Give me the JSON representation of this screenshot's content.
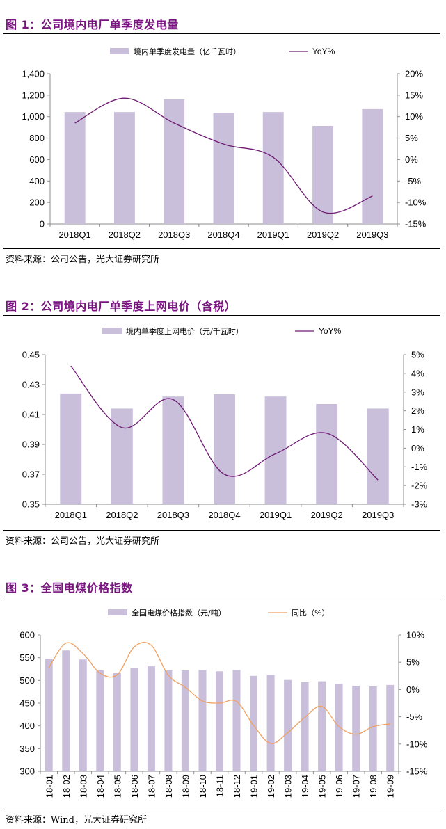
{
  "colors": {
    "title": "#7a1480",
    "bar": "#c9bfdb",
    "line1": "#6e1a72",
    "line3": "#f0a060",
    "axis": "#8c8c8c"
  },
  "figures": [
    {
      "title": "图 1：公司境内电厂单季度发电量",
      "source": "资料来源：公司公告，光大证券研究所"
    },
    {
      "title": "图 2：公司境内电厂单季度上网电价（含税）",
      "source": "资料来源：公司公告，光大证券研究所"
    },
    {
      "title": "图 3：全国电煤价格指数",
      "source": "资料来源：Wind，光大证券研究所"
    }
  ],
  "chart_data": [
    {
      "type": "bar",
      "title": "公司境内电厂单季度发电量",
      "categories": [
        "2018Q1",
        "2018Q2",
        "2018Q3",
        "2018Q4",
        "2019Q1",
        "2019Q2",
        "2019Q3"
      ],
      "series": [
        {
          "name": "境内单季度发电量（亿千瓦时）",
          "type": "bar",
          "axis": "left",
          "values": [
            1043,
            1043,
            1160,
            1037,
            1043,
            914,
            1070
          ]
        },
        {
          "name": "YoY%",
          "type": "line",
          "axis": "right",
          "values": [
            8.5,
            14.3,
            8.5,
            3.6,
            0.5,
            -12.2,
            -8.5
          ]
        }
      ],
      "yleft": {
        "lim": [
          0,
          1400
        ],
        "ticks": [
          0,
          200,
          400,
          600,
          800,
          1000,
          1200,
          1400
        ],
        "tick_labels": [
          "0",
          "200",
          "400",
          "600",
          "800",
          "1,000",
          "1,200",
          "1,400"
        ]
      },
      "yright": {
        "lim": [
          -15,
          20
        ],
        "ticks": [
          -15,
          -10,
          -5,
          0,
          5,
          10,
          15,
          20
        ],
        "tick_labels": [
          "-15%",
          "-10%",
          "-5%",
          "0%",
          "5%",
          "10%",
          "15%",
          "20%"
        ]
      },
      "legend": "top",
      "grid": false
    },
    {
      "type": "bar",
      "title": "公司境内电厂单季度上网电价（含税）",
      "categories": [
        "2018Q1",
        "2018Q2",
        "2018Q3",
        "2018Q4",
        "2019Q1",
        "2019Q2",
        "2019Q3"
      ],
      "series": [
        {
          "name": "境内单季度上网电价（元/千瓦时）",
          "type": "bar",
          "axis": "left",
          "values": [
            0.424,
            0.414,
            0.422,
            0.4235,
            0.422,
            0.417,
            0.414
          ]
        },
        {
          "name": "YoY%",
          "type": "line",
          "axis": "right",
          "values": [
            4.4,
            1.1,
            2.6,
            -1.4,
            -0.3,
            0.8,
            -1.7
          ]
        }
      ],
      "yleft": {
        "lim": [
          0.35,
          0.45
        ],
        "ticks": [
          0.35,
          0.37,
          0.39,
          0.41,
          0.43,
          0.45
        ],
        "tick_labels": [
          "0.35",
          "0.37",
          "0.39",
          "0.41",
          "0.43",
          "0.45"
        ]
      },
      "yright": {
        "lim": [
          -3,
          5
        ],
        "ticks": [
          -3,
          -2,
          -1,
          0,
          1,
          2,
          3,
          4,
          5
        ],
        "tick_labels": [
          "-3%",
          "-2%",
          "-1%",
          "0%",
          "1%",
          "2%",
          "3%",
          "4%",
          "5%"
        ]
      },
      "legend": "top",
      "grid": false
    },
    {
      "type": "bar",
      "title": "全国电煤价格指数",
      "categories": [
        "18-01",
        "18-02",
        "18-03",
        "18-04",
        "18-05",
        "18-06",
        "18-07",
        "18-08",
        "18-09",
        "18-10",
        "18-11",
        "18-12",
        "19-01",
        "19-02",
        "19-03",
        "19-04",
        "19-05",
        "19-06",
        "19-07",
        "19-08",
        "19-09"
      ],
      "series": [
        {
          "name": "全国电煤价格指数（元/吨）",
          "type": "bar",
          "axis": "left",
          "values": [
            548,
            566,
            546,
            522,
            516,
            528,
            531,
            522,
            522,
            523,
            520,
            523,
            510,
            512,
            501,
            496,
            498,
            492,
            488,
            487,
            490
          ]
        },
        {
          "name": "同比（%）",
          "type": "line",
          "axis": "right",
          "values": [
            4.0,
            8.5,
            6.6,
            3.0,
            2.7,
            7.8,
            8.1,
            2.6,
            0.4,
            -2.1,
            -2.5,
            -2.2,
            -6.6,
            -9.9,
            -7.9,
            -5.1,
            -3.1,
            -6.8,
            -8.2,
            -6.8,
            -6.3
          ]
        }
      ],
      "yleft": {
        "lim": [
          300,
          600
        ],
        "ticks": [
          300,
          350,
          400,
          450,
          500,
          550,
          600
        ],
        "tick_labels": [
          "300",
          "350",
          "400",
          "450",
          "500",
          "550",
          "600"
        ]
      },
      "yright": {
        "lim": [
          -15,
          10
        ],
        "ticks": [
          -15,
          -10,
          -5,
          0,
          5,
          10
        ],
        "tick_labels": [
          "-15%",
          "-10%",
          "-5%",
          "0%",
          "5%",
          "10%"
        ]
      },
      "legend": "top",
      "grid": false,
      "xlabel_rotation": "vertical"
    }
  ]
}
